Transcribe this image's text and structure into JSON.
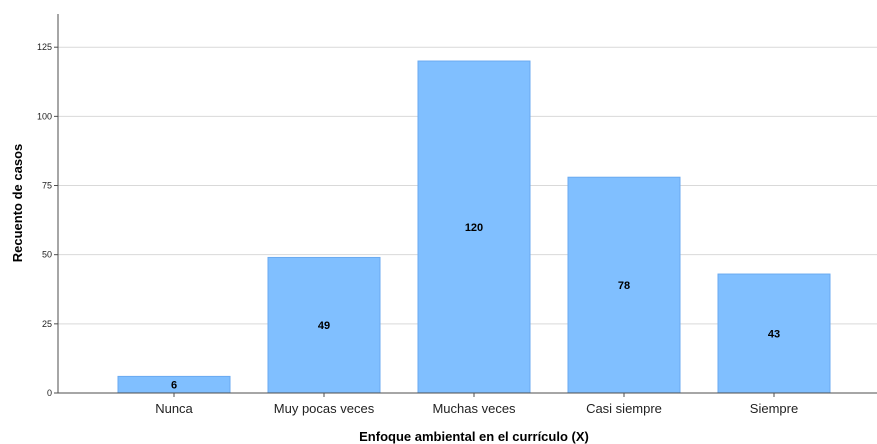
{
  "chart_data": {
    "type": "bar",
    "categories": [
      "Nunca",
      "Muy pocas veces",
      "Muchas veces",
      "Casi siempre",
      "Siempre"
    ],
    "values": [
      6,
      49,
      120,
      78,
      43
    ],
    "data_labels": [
      "6",
      "49",
      "120",
      "78",
      "43"
    ],
    "xlabel": "Enfoque ambiental en el currículo (X)",
    "ylabel": "Recuento de casos",
    "ylim": [
      0,
      137
    ],
    "yticks": [
      0,
      25,
      50,
      75,
      100,
      125
    ],
    "grid": true,
    "legend": "none",
    "colors": {
      "bar_fill": "#80bfff",
      "bar_stroke": "#6aaaf0",
      "grid": "#d9d9d9",
      "axis": "#4d4d4d"
    }
  }
}
